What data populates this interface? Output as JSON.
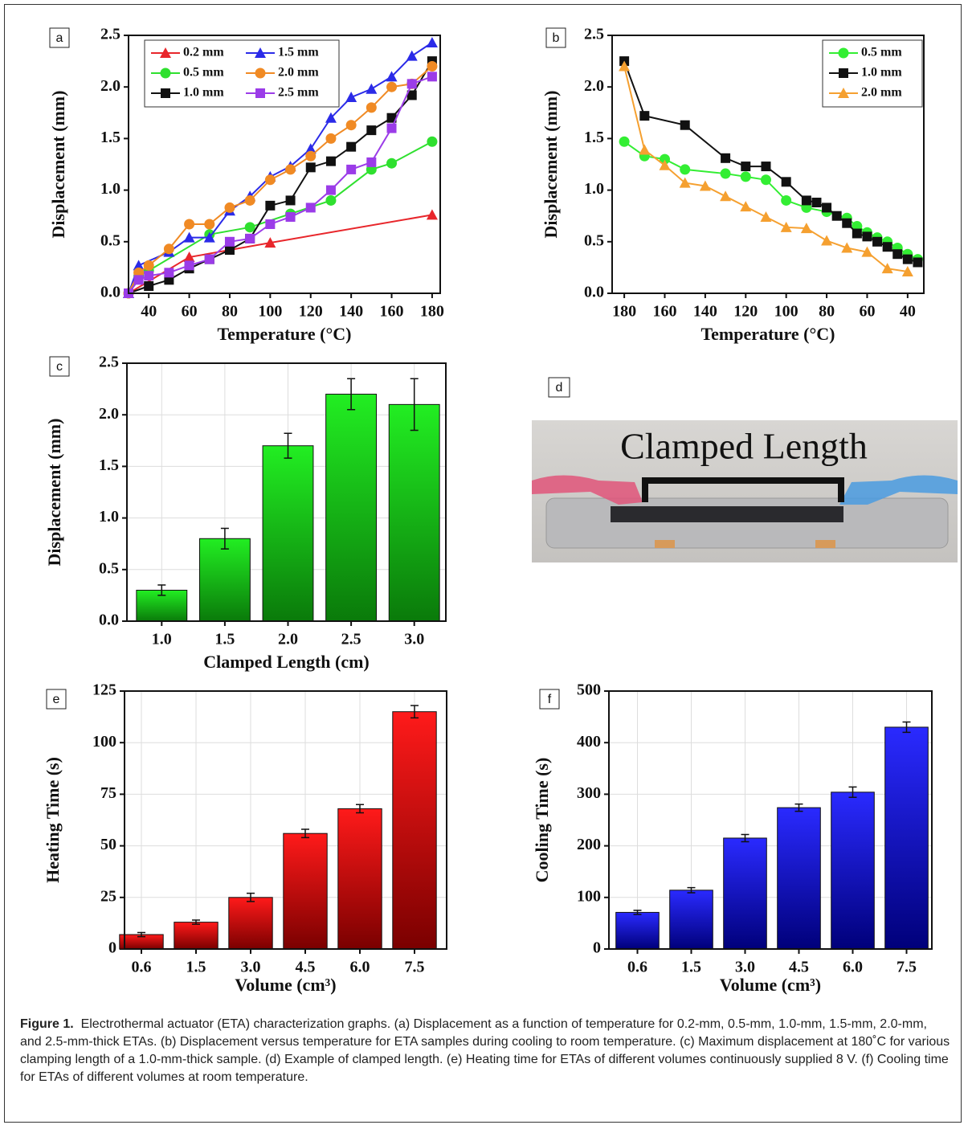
{
  "chart_data": [
    {
      "type": "line",
      "panel": "a",
      "xlabel": "Temperature (°C)",
      "ylabel": "Displacement (mm)",
      "xlim": [
        30,
        184
      ],
      "xticks": [
        40,
        60,
        80,
        100,
        120,
        140,
        160,
        180
      ],
      "ylim": [
        0,
        2.5
      ],
      "yticks": [
        {
          "value": 0,
          "label": "0.0"
        },
        0.5,
        {
          "value": 1,
          "label": "1.0"
        },
        1.5,
        {
          "value": 2,
          "label": "2.0"
        },
        2.5
      ],
      "legend": "top-left",
      "legend_columns": 2,
      "grid": false,
      "series": [
        {
          "name": "0.2 mm",
          "color": "#e8262b",
          "marker": "triangle",
          "x": [
            30,
            60,
            100,
            180
          ],
          "values": [
            0,
            0.35,
            0.49,
            0.76
          ]
        },
        {
          "name": "0.5 mm",
          "color": "#2fe02f",
          "marker": "circle",
          "x": [
            30,
            35,
            40,
            70,
            90,
            110,
            130,
            150,
            160,
            180
          ],
          "values": [
            0,
            0.17,
            0.22,
            0.57,
            0.64,
            0.77,
            0.9,
            1.2,
            1.26,
            1.47
          ]
        },
        {
          "name": "1.0 mm",
          "color": "#111111",
          "marker": "square",
          "x": [
            30,
            40,
            50,
            60,
            70,
            80,
            90,
            100,
            110,
            120,
            130,
            140,
            150,
            160,
            170,
            180
          ],
          "values": [
            0,
            0.07,
            0.13,
            0.24,
            0.33,
            0.42,
            0.53,
            0.85,
            0.9,
            1.22,
            1.28,
            1.42,
            1.58,
            1.7,
            1.92,
            2.25
          ]
        },
        {
          "name": "1.5 mm",
          "color": "#2b2be8",
          "marker": "triangle",
          "x": [
            30,
            35,
            50,
            60,
            70,
            80,
            90,
            100,
            110,
            120,
            130,
            140,
            150,
            160,
            170,
            180
          ],
          "values": [
            0,
            0.27,
            0.4,
            0.54,
            0.54,
            0.8,
            0.94,
            1.13,
            1.23,
            1.4,
            1.7,
            1.9,
            1.98,
            2.1,
            2.3,
            2.43
          ]
        },
        {
          "name": "2.0 mm",
          "color": "#f08a24",
          "marker": "circle",
          "x": [
            30,
            35,
            40,
            50,
            60,
            70,
            80,
            90,
            100,
            110,
            120,
            130,
            140,
            150,
            160,
            170,
            180
          ],
          "values": [
            0,
            0.2,
            0.27,
            0.43,
            0.67,
            0.67,
            0.83,
            0.9,
            1.1,
            1.2,
            1.33,
            1.5,
            1.63,
            1.8,
            2.0,
            2.03,
            2.2
          ]
        },
        {
          "name": "2.5 mm",
          "color": "#9b3ce8",
          "marker": "square",
          "x": [
            30,
            35,
            40,
            50,
            60,
            70,
            80,
            90,
            100,
            110,
            120,
            130,
            140,
            150,
            160,
            170,
            180
          ],
          "values": [
            0,
            0.13,
            0.17,
            0.2,
            0.27,
            0.33,
            0.5,
            0.53,
            0.67,
            0.74,
            0.83,
            1.0,
            1.2,
            1.27,
            1.6,
            2.03,
            2.1
          ]
        }
      ]
    },
    {
      "type": "line",
      "panel": "b",
      "xlabel": "Temperature (°C)",
      "ylabel": "Displacement (mm)",
      "xlim": [
        186,
        32
      ],
      "xticks": [
        180,
        160,
        140,
        120,
        100,
        80,
        60,
        40
      ],
      "ylim": [
        0,
        2.5
      ],
      "yticks": [
        {
          "value": 0,
          "label": "0.0"
        },
        0.5,
        {
          "value": 1,
          "label": "1.0"
        },
        1.5,
        {
          "value": 2,
          "label": "2.0"
        },
        2.5
      ],
      "legend": "top-right",
      "legend_columns": 1,
      "grid": false,
      "series": [
        {
          "name": "0.5 mm",
          "color": "#33ee33",
          "marker": "circle",
          "x": [
            180,
            170,
            160,
            150,
            130,
            120,
            110,
            100,
            90,
            80,
            70,
            65,
            60,
            55,
            50,
            45,
            40,
            35
          ],
          "values": [
            1.47,
            1.33,
            1.3,
            1.2,
            1.16,
            1.13,
            1.1,
            0.9,
            0.83,
            0.79,
            0.73,
            0.65,
            0.59,
            0.54,
            0.5,
            0.44,
            0.38,
            0.33
          ]
        },
        {
          "name": "1.0 mm",
          "color": "#111111",
          "marker": "square",
          "x": [
            180,
            170,
            150,
            130,
            120,
            110,
            100,
            90,
            85,
            80,
            75,
            70,
            65,
            60,
            55,
            50,
            45,
            40,
            35
          ],
          "values": [
            2.25,
            1.72,
            1.63,
            1.31,
            1.23,
            1.23,
            1.08,
            0.9,
            0.88,
            0.83,
            0.75,
            0.68,
            0.58,
            0.55,
            0.5,
            0.45,
            0.38,
            0.33,
            0.3
          ]
        },
        {
          "name": "2.0 mm",
          "color": "#f5a030",
          "marker": "triangle",
          "x": [
            180,
            170,
            160,
            150,
            140,
            130,
            120,
            110,
            100,
            90,
            80,
            70,
            60,
            50,
            40
          ],
          "values": [
            2.2,
            1.39,
            1.24,
            1.07,
            1.04,
            0.94,
            0.84,
            0.74,
            0.64,
            0.63,
            0.51,
            0.44,
            0.4,
            0.24,
            0.21
          ]
        }
      ]
    },
    {
      "type": "bar",
      "panel": "c",
      "xlabel": "Clamped Length (cm)",
      "ylabel": "Displacement (mm)",
      "categories": [
        "1.0",
        "1.5",
        "2.0",
        "2.5",
        "3.0"
      ],
      "values": [
        0.3,
        0.8,
        1.7,
        2.2,
        2.1
      ],
      "errors": [
        0.05,
        0.1,
        0.12,
        0.15,
        0.25
      ],
      "ylim": [
        0,
        2.5
      ],
      "yticks": [
        {
          "value": 0,
          "label": "0.0"
        },
        0.5,
        {
          "value": 1,
          "label": "1.0"
        },
        1.5,
        {
          "value": 2,
          "label": "2.0"
        },
        2.5
      ],
      "color": "#22ee22",
      "color_bottom": "#0a7a0a",
      "grid": true
    },
    {
      "type": "bar",
      "panel": "e",
      "xlabel": "Volume (cm³)",
      "ylabel": "Heating Time (s)",
      "categories": [
        "0.6",
        "1.5",
        "3.0",
        "4.5",
        "6.0",
        "7.5"
      ],
      "values": [
        7,
        13,
        25,
        56,
        68,
        115
      ],
      "errors": [
        1,
        1,
        2,
        2,
        2,
        3
      ],
      "ylim": [
        0,
        125
      ],
      "yticks": [
        0,
        25,
        50,
        75,
        100,
        125
      ],
      "color": "#ff1a1a",
      "color_bottom": "#7a0000",
      "grid": true
    },
    {
      "type": "bar",
      "panel": "f",
      "xlabel": "Volume (cm³)",
      "ylabel": "Cooling Time (s)",
      "categories": [
        "0.6",
        "1.5",
        "3.0",
        "4.5",
        "6.0",
        "7.5"
      ],
      "values": [
        71,
        114,
        215,
        274,
        304,
        430
      ],
      "errors": [
        4,
        5,
        7,
        7,
        10,
        10
      ],
      "ylim": [
        0,
        500
      ],
      "yticks": [
        0,
        100,
        200,
        300,
        400,
        500
      ],
      "color": "#2a2aff",
      "color_bottom": "#00007a",
      "grid": true
    }
  ],
  "photo": {
    "panel": "d",
    "label": "Clamped Length"
  },
  "caption": {
    "label": "Figure 1.",
    "text": "Electrothermal actuator (ETA) characterization graphs. (a) Displacement as a function of temperature for 0.2-mm, 0.5-mm, 1.0-mm, 1.5-mm, 2.0-mm, and 2.5-mm-thick ETAs. (b) Displacement versus temperature for ETA samples during cooling to room temperature. (c) Maximum displacement at 180˚C for various clamping length of a 1.0-mm-thick sample. (d) Example of clamped length. (e) Heating time for ETAs of different volumes continuously supplied 8 V. (f) Cooling time for ETAs of different volumes at room temperature."
  }
}
